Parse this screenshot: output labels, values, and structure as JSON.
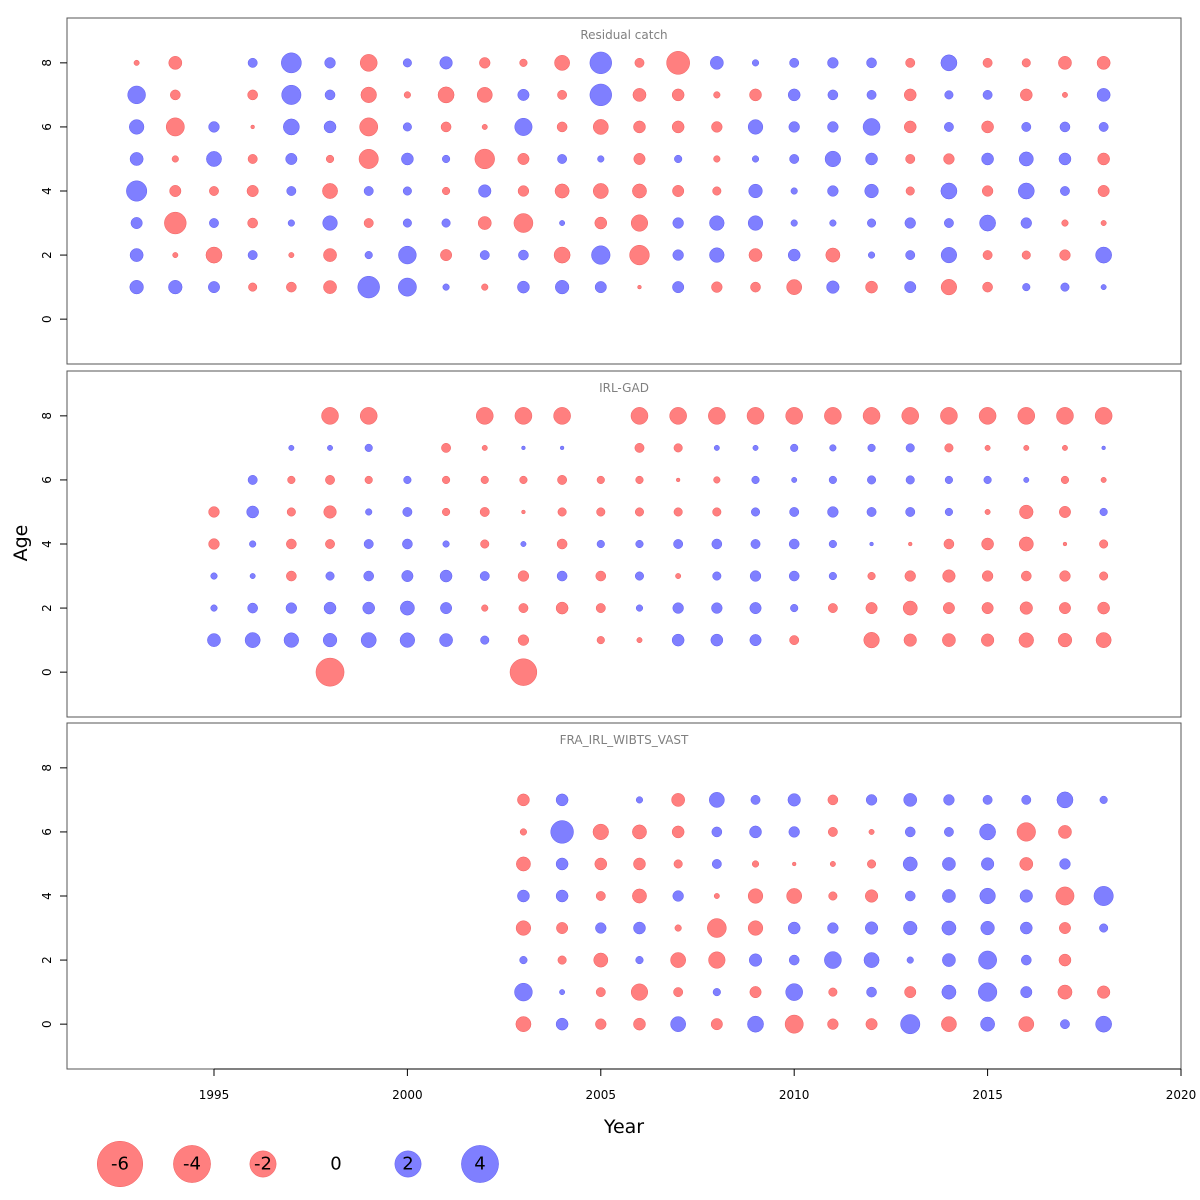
{
  "chart_data": {
    "type": "scatter",
    "xlabel": "Year",
    "ylabel": "Age",
    "x_ticks": [
      1995,
      2000,
      2005,
      2010,
      2015,
      2020
    ],
    "y_ticks": [
      0,
      2,
      4,
      6,
      8
    ],
    "xlim": [
      1991.2,
      2020
    ],
    "ylim": [
      -1.4,
      9.4
    ],
    "colors": {
      "negative": "#FF7F7F",
      "positive": "#7F7FFF"
    },
    "legend": [
      -6,
      -4,
      -2,
      0,
      2,
      4
    ],
    "panels": [
      {
        "title": "Residual catch",
        "ages": [
          8,
          7,
          6,
          5,
          4,
          3,
          2,
          1
        ],
        "year_start": 1993,
        "rows": [
          [
            -0.2,
            -1.2,
            null,
            0.6,
            2.8,
            0.8,
            -2.0,
            0.5,
            1.1,
            -0.8,
            -0.4,
            -1.6,
            3.3,
            -0.6,
            -3.7,
            1.2,
            0.3,
            0.6,
            0.8,
            0.7,
            -0.6,
            1.8,
            -0.6,
            -0.5,
            -1.2,
            -1.2
          ],
          [
            2.2,
            -0.7,
            null,
            -0.7,
            2.6,
            0.7,
            -1.7,
            -0.3,
            -1.8,
            -1.6,
            0.9,
            -0.6,
            3.3,
            -1.2,
            -1.0,
            -0.3,
            -1.0,
            1.0,
            0.7,
            0.6,
            -1.0,
            0.5,
            0.6,
            -1.0,
            -0.2,
            1.2
          ],
          [
            1.5,
            -2.3,
            0.8,
            -0.1,
            1.8,
            1.0,
            -2.3,
            0.5,
            -0.7,
            -0.2,
            2.1,
            -0.7,
            -1.6,
            -1.0,
            -1.0,
            -0.8,
            1.5,
            0.8,
            0.8,
            2.0,
            -1.0,
            0.6,
            -1.0,
            0.6,
            0.7,
            0.6
          ],
          [
            1.2,
            -0.3,
            1.6,
            -0.6,
            0.9,
            -0.4,
            -2.6,
            1.0,
            0.4,
            -2.7,
            -0.9,
            0.6,
            0.3,
            -0.9,
            0.4,
            -0.3,
            0.3,
            0.6,
            1.7,
            1.0,
            -0.6,
            -0.8,
            1.0,
            1.4,
            1.0,
            -1.0
          ],
          [
            2.9,
            -0.9,
            -0.6,
            -0.9,
            0.6,
            -1.6,
            0.6,
            0.5,
            -0.4,
            1.1,
            -0.8,
            -1.4,
            -1.6,
            -1.4,
            -0.9,
            -0.5,
            1.3,
            0.3,
            0.8,
            1.3,
            -0.5,
            1.8,
            -0.8,
            1.8,
            0.6,
            -0.9
          ],
          [
            0.9,
            -3.3,
            0.6,
            -0.7,
            0.3,
            1.5,
            -0.6,
            0.5,
            0.5,
            -1.2,
            -2.5,
            0.2,
            -1.0,
            -1.9,
            0.8,
            1.5,
            1.5,
            0.3,
            0.3,
            0.5,
            0.8,
            0.6,
            1.8,
            0.8,
            -0.3,
            -0.2
          ],
          [
            1.2,
            -0.2,
            -1.8,
            0.6,
            -0.2,
            -1.2,
            0.4,
            2.2,
            -0.9,
            0.6,
            0.7,
            -1.8,
            2.4,
            -2.7,
            0.8,
            1.5,
            -1.2,
            1.0,
            -1.4,
            0.3,
            0.6,
            1.7,
            -0.6,
            -0.5,
            -0.8,
            1.8
          ],
          [
            1.3,
            1.3,
            0.9,
            -0.5,
            -0.7,
            -1.2,
            3.3,
            2.3,
            0.3,
            -0.3,
            1.0,
            1.3,
            0.9,
            -0.1,
            0.9,
            -0.8,
            -0.7,
            -1.6,
            1.1,
            -1.0,
            0.9,
            -1.7,
            -0.7,
            0.4,
            0.5,
            0.2
          ]
        ]
      },
      {
        "title": "IRL-GAD",
        "ages": [
          8,
          7,
          6,
          5,
          4,
          3,
          2,
          1,
          0
        ],
        "year_start": 1995,
        "rows": [
          [
            null,
            null,
            null,
            -2.0,
            -2.0,
            null,
            null,
            -2.0,
            -2.0,
            -2.0,
            null,
            -2.0,
            -2.0,
            -2.0,
            -2.0,
            -2.0,
            -2.0,
            -2.0,
            -2.0,
            -2.0,
            -2.0,
            -2.0,
            -2.0,
            -2.0
          ],
          [
            null,
            null,
            0.2,
            0.2,
            0.4,
            null,
            -0.6,
            -0.2,
            0.1,
            0.1,
            null,
            -0.6,
            -0.5,
            0.2,
            0.2,
            0.4,
            0.3,
            0.4,
            0.5,
            -0.5,
            -0.2,
            -0.2,
            -0.2,
            0.1
          ],
          [
            null,
            0.6,
            -0.4,
            -0.6,
            -0.4,
            0.4,
            -0.4,
            -0.4,
            -0.4,
            -0.6,
            -0.4,
            -0.4,
            -0.1,
            -0.3,
            0.4,
            0.2,
            0.4,
            0.5,
            0.5,
            0.4,
            0.4,
            0.2,
            -0.4,
            -0.2
          ],
          [
            -0.8,
            1.0,
            -0.5,
            -1.1,
            0.3,
            0.6,
            -0.4,
            -0.6,
            -0.1,
            -0.5,
            -0.5,
            -0.5,
            -0.5,
            -0.5,
            0.5,
            0.6,
            0.8,
            0.6,
            0.6,
            0.4,
            -0.2,
            -1.3,
            -0.9,
            0.4
          ],
          [
            -0.8,
            0.3,
            -0.7,
            -0.6,
            0.6,
            0.7,
            0.3,
            -0.5,
            0.2,
            -0.7,
            0.4,
            0.4,
            0.6,
            0.7,
            0.6,
            0.7,
            0.4,
            0.1,
            -0.1,
            -0.7,
            -1.0,
            -1.4,
            -0.1,
            -0.5
          ],
          [
            0.3,
            0.2,
            -0.7,
            0.5,
            0.7,
            0.9,
            1.0,
            0.6,
            -0.8,
            0.7,
            -0.7,
            0.5,
            -0.2,
            0.5,
            0.8,
            0.7,
            0.4,
            -0.4,
            -0.8,
            -1.1,
            -0.8,
            -0.7,
            -0.8,
            -0.5
          ],
          [
            0.3,
            0.7,
            0.8,
            1.0,
            1.0,
            1.4,
            0.9,
            -0.3,
            -0.6,
            -1.0,
            -0.6,
            0.3,
            0.8,
            0.8,
            0.9,
            0.4,
            -0.6,
            -0.9,
            -1.4,
            -0.9,
            -0.9,
            -1.1,
            -0.9,
            -1.0
          ],
          [
            1.2,
            1.6,
            1.5,
            1.3,
            1.6,
            1.5,
            1.2,
            0.5,
            -0.8,
            null,
            -0.4,
            -0.2,
            1.0,
            1.0,
            0.9,
            -0.6,
            null,
            -1.7,
            -1.1,
            -1.2,
            -1.1,
            -1.5,
            -1.3,
            -1.6
          ],
          [
            null,
            null,
            null,
            -5.5,
            null,
            null,
            null,
            null,
            -5.0,
            null,
            null,
            null,
            null,
            null,
            null,
            null,
            null,
            null,
            null,
            null,
            null,
            null,
            null,
            null
          ]
        ]
      },
      {
        "title": "FRA_IRL_WIBTS_VAST",
        "ages": [
          7,
          6,
          5,
          4,
          3,
          2,
          1,
          0
        ],
        "year_start": 2003,
        "rows": [
          [
            -1.0,
            1.0,
            null,
            0.3,
            -1.2,
            1.6,
            0.6,
            1.1,
            -0.7,
            0.8,
            1.2,
            0.8,
            0.6,
            0.6,
            1.8,
            0.4
          ],
          [
            -0.3,
            3.6,
            -1.7,
            -1.4,
            -1.0,
            0.7,
            1.0,
            0.8,
            -0.6,
            -0.2,
            0.7,
            0.6,
            1.8,
            -2.4,
            -1.2
          ],
          [
            -1.4,
            1.0,
            -1.0,
            -1.0,
            -0.5,
            0.6,
            -0.3,
            -0.1,
            -0.2,
            -0.5,
            1.4,
            1.2,
            1.1,
            -1.2,
            0.8
          ],
          [
            1.0,
            1.0,
            -0.6,
            -1.4,
            0.8,
            -0.2,
            -1.5,
            -1.6,
            -0.5,
            -1.1,
            0.7,
            1.2,
            1.7,
            1.1,
            -2.3,
            2.6
          ],
          [
            -1.5,
            -0.9,
            0.8,
            1.0,
            -0.3,
            -2.5,
            -1.5,
            1.0,
            0.8,
            1.1,
            1.3,
            1.4,
            1.3,
            1.0,
            -0.9,
            0.5
          ],
          [
            0.4,
            -0.5,
            -1.4,
            0.4,
            -1.6,
            -1.9,
            1.1,
            0.7,
            2.0,
            1.6,
            0.3,
            1.2,
            2.3,
            0.7,
            -1.0
          ],
          [
            2.2,
            0.2,
            -0.6,
            -1.9,
            -0.6,
            0.4,
            -0.9,
            2.0,
            -0.5,
            0.7,
            -0.9,
            1.4,
            2.4,
            0.9,
            -1.4,
            -1.1
          ],
          [
            -1.6,
            1.0,
            -0.8,
            -1.0,
            1.6,
            -0.9,
            1.8,
            -2.3,
            -0.8,
            -0.9,
            2.6,
            -1.6,
            1.4,
            -1.6,
            0.6,
            1.8
          ]
        ]
      }
    ]
  }
}
